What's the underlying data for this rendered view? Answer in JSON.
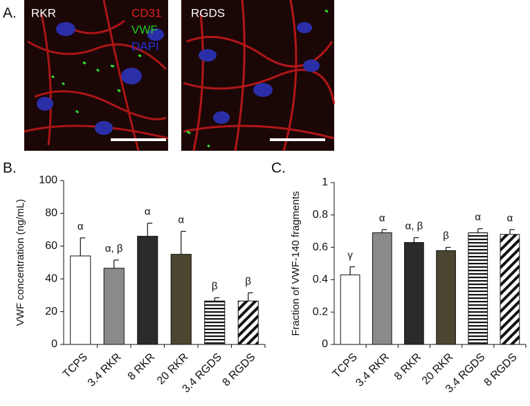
{
  "panel_a": {
    "label": "A.",
    "images": [
      {
        "label": "RKR",
        "stains": [
          {
            "name": "CD31",
            "color": "#e02020"
          },
          {
            "name": "VWF",
            "color": "#22cc22"
          },
          {
            "name": "DAPI",
            "color": "#2233dd"
          }
        ]
      },
      {
        "label": "RGDS"
      }
    ]
  },
  "chart_data": [
    {
      "type": "bar",
      "panel_label": "B.",
      "ylabel": "VWF concentration (ng/mL)",
      "categories": [
        "TCPS",
        "3.4 RKR",
        "8 RKR",
        "20 RKR",
        "3.4 RGDS",
        "8 RGDS"
      ],
      "values": [
        54,
        46.5,
        66,
        55,
        26.5,
        26.5
      ],
      "errors": [
        11,
        5,
        8,
        14,
        2,
        5
      ],
      "annotations": [
        "α",
        "α, β",
        "α",
        "α",
        "β",
        "β"
      ],
      "colors": [
        "#ffffff",
        "#8a8a8a",
        "#2b2b2b",
        "#4b4630",
        "#ffffff",
        "#ffffff"
      ],
      "patterns": [
        "solid",
        "solid",
        "solid",
        "solid",
        "hlines",
        "diag"
      ],
      "ylim": [
        0,
        100
      ],
      "yticks": [
        0,
        20,
        40,
        60,
        80,
        100
      ]
    },
    {
      "type": "bar",
      "panel_label": "C.",
      "ylabel": "Fraction of  VWF-140 fragments",
      "categories": [
        "TCPS",
        "3.4 RKR",
        "8 RKR",
        "20 RKR",
        "3.4 RGDS",
        "8 RGDS"
      ],
      "values": [
        0.43,
        0.69,
        0.63,
        0.58,
        0.69,
        0.68
      ],
      "errors": [
        0.05,
        0.02,
        0.03,
        0.02,
        0.025,
        0.03
      ],
      "annotations": [
        "γ",
        "α",
        "α, β",
        "β",
        "α",
        "α"
      ],
      "colors": [
        "#ffffff",
        "#8a8a8a",
        "#2b2b2b",
        "#4b4630",
        "#ffffff",
        "#ffffff"
      ],
      "patterns": [
        "solid",
        "solid",
        "solid",
        "solid",
        "hlines",
        "diag"
      ],
      "ylim": [
        0,
        1
      ],
      "yticks": [
        0,
        0.2,
        0.4,
        0.6,
        0.8,
        1
      ]
    }
  ]
}
